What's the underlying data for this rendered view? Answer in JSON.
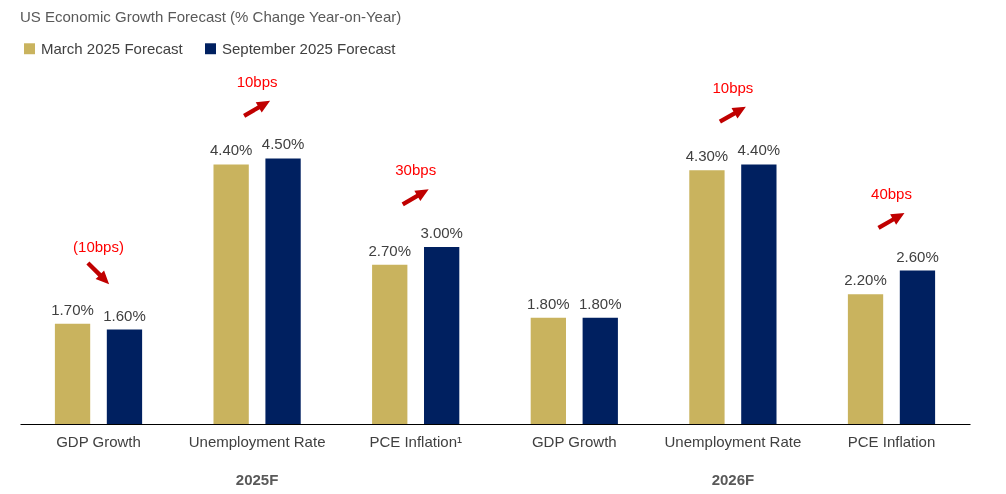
{
  "chart_data": {
    "type": "bar",
    "title": "US Economic Growth Forecast (% Change Year-on-Year)",
    "categories": [
      "GDP Growth",
      "Unemployment Rate",
      "PCE Inflation¹",
      "GDP Growth",
      "Unemployment Rate",
      "PCE Inflation"
    ],
    "series": [
      {
        "name": "March 2025 Forecast",
        "color": "#c9b35e",
        "values": [
          1.7,
          4.4,
          2.7,
          1.8,
          4.3,
          2.2
        ],
        "value_labels": [
          "1.70%",
          "4.40%",
          "2.70%",
          "1.80%",
          "4.30%",
          "2.20%"
        ]
      },
      {
        "name": "September 2025 Forecast",
        "color": "#002060",
        "values": [
          1.6,
          4.5,
          3.0,
          1.8,
          4.4,
          2.6
        ],
        "value_labels": [
          "1.60%",
          "4.50%",
          "3.00%",
          "1.80%",
          "4.40%",
          "2.60%"
        ]
      }
    ],
    "annotations": [
      "(10bps)",
      "10bps",
      "30bps",
      "10bps",
      "40bps",
      "2025F",
      "2026F"
    ],
    "legend": "top left"
  }
}
